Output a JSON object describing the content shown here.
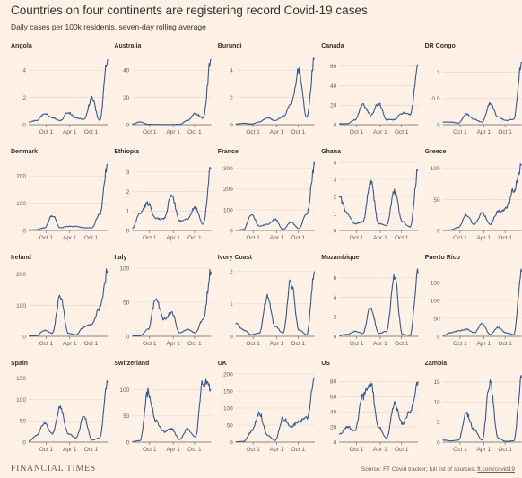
{
  "title": "Countries on four continents are registering record Covid-19 cases",
  "subtitle": "Daily cases per 100k residents, seven-day rolling average",
  "footer": {
    "brand": "FINANCIAL TIMES",
    "source_prefix": "Source: FT Covid tracker; full list of sources: ",
    "source_link": "ft.com/covid19"
  },
  "colors": {
    "background": "#fff1e5",
    "line": "#2e5a93",
    "grid": "#e3d5c8",
    "axis": "#66605c"
  },
  "x_ticks": [
    "Oct 1",
    "Apr 1",
    "Oct 1"
  ],
  "chart_data": [
    {
      "type": "line",
      "title": "Angola",
      "ylim": [
        0,
        5
      ],
      "yticks": [
        0,
        2,
        4
      ],
      "x": [
        "2020-06",
        "2020-08",
        "2020-10",
        "2020-12",
        "2021-02",
        "2021-04",
        "2021-06",
        "2021-08",
        "2021-10",
        "2021-12",
        "2022-01"
      ],
      "values": [
        0.2,
        0.3,
        0.8,
        0.5,
        0.3,
        0.9,
        0.5,
        0.4,
        1.9,
        0.3,
        4.8
      ]
    },
    {
      "type": "line",
      "title": "Australia",
      "ylim": [
        0,
        50
      ],
      "yticks": [
        0,
        20,
        40
      ],
      "x": [
        "2020-06",
        "2020-08",
        "2020-10",
        "2020-12",
        "2021-02",
        "2021-04",
        "2021-06",
        "2021-08",
        "2021-10",
        "2021-12",
        "2022-01"
      ],
      "values": [
        0.5,
        2,
        0.3,
        0.2,
        0.1,
        0.1,
        0.3,
        3,
        8,
        5,
        48
      ]
    },
    {
      "type": "line",
      "title": "Burundi",
      "ylim": [
        0,
        5
      ],
      "yticks": [
        0,
        2,
        4
      ],
      "x": [
        "2020-06",
        "2020-08",
        "2020-10",
        "2020-12",
        "2021-02",
        "2021-04",
        "2021-06",
        "2021-08",
        "2021-10",
        "2021-12",
        "2022-01"
      ],
      "values": [
        0.05,
        0.1,
        0.05,
        0.2,
        0.5,
        0.3,
        0.6,
        1.5,
        4,
        0.5,
        4.8
      ]
    },
    {
      "type": "line",
      "title": "Canada",
      "ylim": [
        0,
        70
      ],
      "yticks": [
        0,
        20,
        40,
        60
      ],
      "x": [
        "2020-06",
        "2020-08",
        "2020-10",
        "2020-12",
        "2021-02",
        "2021-04",
        "2021-06",
        "2021-08",
        "2021-10",
        "2021-12",
        "2022-01"
      ],
      "values": [
        1,
        1,
        5,
        20,
        10,
        22,
        5,
        5,
        12,
        10,
        62
      ]
    },
    {
      "type": "line",
      "title": "DR Congo",
      "ylim": [
        0,
        1.3
      ],
      "yticks": [
        0,
        0.5,
        1
      ],
      "x": [
        "2020-06",
        "2020-08",
        "2020-10",
        "2020-12",
        "2021-02",
        "2021-04",
        "2021-06",
        "2021-08",
        "2021-10",
        "2021-12",
        "2022-01"
      ],
      "values": [
        0.05,
        0.05,
        0.03,
        0.2,
        0.1,
        0.05,
        0.4,
        0.15,
        0.08,
        0.1,
        1.2
      ]
    },
    {
      "type": "line",
      "title": "Denmark",
      "ylim": [
        0,
        250
      ],
      "yticks": [
        0,
        100,
        200
      ],
      "x": [
        "2020-06",
        "2020-08",
        "2020-10",
        "2020-12",
        "2021-02",
        "2021-04",
        "2021-06",
        "2021-08",
        "2021-10",
        "2021-12",
        "2022-01"
      ],
      "values": [
        2,
        3,
        10,
        55,
        10,
        15,
        15,
        10,
        10,
        60,
        240
      ]
    },
    {
      "type": "line",
      "title": "Ethiopia",
      "ylim": [
        0,
        3.5
      ],
      "yticks": [
        0,
        1,
        2,
        3
      ],
      "x": [
        "2020-06",
        "2020-08",
        "2020-10",
        "2020-12",
        "2021-02",
        "2021-04",
        "2021-06",
        "2021-08",
        "2021-10",
        "2021-12",
        "2022-01"
      ],
      "values": [
        0.1,
        0.9,
        1.4,
        0.6,
        0.6,
        1.8,
        0.5,
        0.6,
        1.2,
        0.3,
        3.2
      ]
    },
    {
      "type": "line",
      "title": "France",
      "ylim": [
        0,
        330
      ],
      "yticks": [
        0,
        100,
        200,
        300
      ],
      "x": [
        "2020-06",
        "2020-08",
        "2020-10",
        "2020-12",
        "2021-02",
        "2021-04",
        "2021-06",
        "2021-08",
        "2021-10",
        "2021-12",
        "2022-01"
      ],
      "values": [
        1,
        5,
        80,
        20,
        30,
        55,
        5,
        40,
        10,
        80,
        320
      ]
    },
    {
      "type": "line",
      "title": "Ghana",
      "ylim": [
        0,
        4
      ],
      "yticks": [
        0,
        1,
        2,
        3,
        4
      ],
      "x": [
        "2020-06",
        "2020-08",
        "2020-10",
        "2020-12",
        "2021-02",
        "2021-04",
        "2021-06",
        "2021-08",
        "2021-10",
        "2021-12",
        "2022-01"
      ],
      "values": [
        2,
        1,
        0.4,
        0.5,
        2.8,
        0.4,
        0.3,
        2.3,
        0.5,
        0.2,
        3.5
      ]
    },
    {
      "type": "line",
      "title": "Greece",
      "ylim": [
        0,
        110
      ],
      "yticks": [
        0,
        50,
        100
      ],
      "x": [
        "2020-06",
        "2020-08",
        "2020-10",
        "2020-12",
        "2021-02",
        "2021-04",
        "2021-06",
        "2021-08",
        "2021-10",
        "2021-12",
        "2022-01"
      ],
      "values": [
        0.2,
        1,
        5,
        25,
        10,
        28,
        10,
        30,
        35,
        65,
        105
      ]
    },
    {
      "type": "line",
      "title": "Ireland",
      "ylim": [
        0,
        220
      ],
      "yticks": [
        0,
        100,
        200
      ],
      "x": [
        "2020-06",
        "2020-08",
        "2020-10",
        "2020-12",
        "2021-02",
        "2021-04",
        "2021-06",
        "2021-08",
        "2021-10",
        "2021-12",
        "2022-01"
      ],
      "values": [
        1,
        2,
        20,
        10,
        130,
        10,
        5,
        30,
        40,
        90,
        210
      ]
    },
    {
      "type": "line",
      "title": "Italy",
      "ylim": [
        0,
        100
      ],
      "yticks": [
        0,
        50,
        100
      ],
      "x": [
        "2020-06",
        "2020-08",
        "2020-10",
        "2020-12",
        "2021-02",
        "2021-04",
        "2021-06",
        "2021-08",
        "2021-10",
        "2021-12",
        "2022-01"
      ],
      "values": [
        0.5,
        1,
        10,
        55,
        25,
        35,
        5,
        10,
        5,
        25,
        95
      ]
    },
    {
      "type": "line",
      "title": "Ivory Coast",
      "ylim": [
        0,
        2.1
      ],
      "yticks": [
        0,
        1,
        2
      ],
      "x": [
        "2020-06",
        "2020-08",
        "2020-10",
        "2020-12",
        "2021-02",
        "2021-04",
        "2021-06",
        "2021-08",
        "2021-10",
        "2021-12",
        "2022-01"
      ],
      "values": [
        0.4,
        0.2,
        0.05,
        0.1,
        1.2,
        0.3,
        0.1,
        1.7,
        0.2,
        0.05,
        2
      ]
    },
    {
      "type": "line",
      "title": "Mozambique",
      "ylim": [
        0,
        7
      ],
      "yticks": [
        0,
        2,
        4,
        6
      ],
      "x": [
        "2020-06",
        "2020-08",
        "2020-10",
        "2020-12",
        "2021-02",
        "2021-04",
        "2021-06",
        "2021-08",
        "2021-10",
        "2021-12",
        "2022-01"
      ],
      "values": [
        0.1,
        0.2,
        0.5,
        0.3,
        3,
        0.3,
        0.5,
        6,
        0.2,
        0.1,
        6.5
      ]
    },
    {
      "type": "line",
      "title": "Puerto Rico",
      "ylim": [
        0,
        190
      ],
      "yticks": [
        0,
        50,
        100,
        150
      ],
      "x": [
        "2020-06",
        "2020-08",
        "2020-10",
        "2020-12",
        "2021-02",
        "2021-04",
        "2021-06",
        "2021-08",
        "2021-10",
        "2021-12",
        "2022-01"
      ],
      "values": [
        2,
        10,
        15,
        20,
        10,
        35,
        5,
        25,
        10,
        5,
        180
      ]
    },
    {
      "type": "line",
      "title": "Spain",
      "ylim": [
        0,
        160
      ],
      "yticks": [
        0,
        50,
        100,
        150
      ],
      "x": [
        "2020-06",
        "2020-08",
        "2020-10",
        "2020-12",
        "2021-02",
        "2021-04",
        "2021-06",
        "2021-08",
        "2021-10",
        "2021-12",
        "2022-01"
      ],
      "values": [
        2,
        15,
        45,
        20,
        80,
        20,
        10,
        60,
        5,
        10,
        140
      ]
    },
    {
      "type": "line",
      "title": "Switzerland",
      "ylim": [
        0,
        130
      ],
      "yticks": [
        0,
        50,
        100
      ],
      "x": [
        "2020-06",
        "2020-08",
        "2020-10",
        "2020-12",
        "2021-02",
        "2021-04",
        "2021-06",
        "2021-08",
        "2021-10",
        "2021-12",
        "2022-01"
      ],
      "values": [
        1,
        3,
        95,
        40,
        20,
        25,
        5,
        25,
        10,
        115,
        100
      ]
    },
    {
      "type": "line",
      "title": "UK",
      "ylim": [
        0,
        200
      ],
      "yticks": [
        0,
        50,
        100,
        150,
        200
      ],
      "x": [
        "2020-06",
        "2020-08",
        "2020-10",
        "2020-12",
        "2021-02",
        "2021-04",
        "2021-06",
        "2021-08",
        "2021-10",
        "2021-12",
        "2022-01"
      ],
      "values": [
        1,
        2,
        30,
        85,
        20,
        5,
        70,
        45,
        60,
        70,
        190
      ]
    },
    {
      "type": "line",
      "title": "US",
      "ylim": [
        0,
        90
      ],
      "yticks": [
        0,
        20,
        40,
        60,
        80
      ],
      "x": [
        "2020-06",
        "2020-08",
        "2020-10",
        "2020-12",
        "2021-02",
        "2021-04",
        "2021-06",
        "2021-08",
        "2021-10",
        "2021-12",
        "2022-01"
      ],
      "values": [
        10,
        20,
        15,
        60,
        75,
        20,
        5,
        50,
        25,
        40,
        80
      ]
    },
    {
      "type": "line",
      "title": "Zambia",
      "ylim": [
        0,
        17
      ],
      "yticks": [
        0,
        5,
        10,
        15
      ],
      "x": [
        "2020-06",
        "2020-08",
        "2020-10",
        "2020-12",
        "2021-02",
        "2021-04",
        "2021-06",
        "2021-08",
        "2021-10",
        "2021-12",
        "2022-01"
      ],
      "values": [
        0.5,
        0.3,
        0.5,
        7,
        3,
        0.5,
        15,
        1,
        0.2,
        0.3,
        16
      ]
    }
  ]
}
